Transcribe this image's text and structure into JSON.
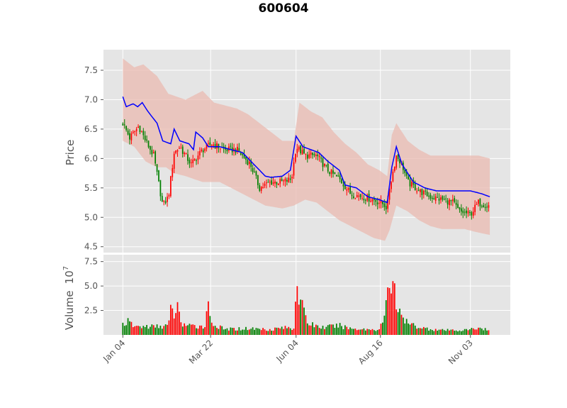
{
  "chart_data": {
    "type": "candlestick",
    "title": "600604",
    "colors": {
      "up": "#ff0000",
      "down": "#008000",
      "ma_line": "#0000ff",
      "band": "#e9b9b0",
      "panel_bg": "#e5e5e5",
      "grid": "#ffffff",
      "tick_text": "#555555"
    },
    "grid": true,
    "price_panel": {
      "ylabel": "Price",
      "ylim": [
        4.4,
        7.85
      ],
      "yticks": [
        4.5,
        5.0,
        5.5,
        6.0,
        6.5,
        7.0,
        7.5
      ],
      "ytick_labels": [
        "4.5",
        "5.0",
        "5.5",
        "6.0",
        "6.5",
        "7.0",
        "7.5"
      ]
    },
    "volume_panel": {
      "ylabel": "Volume",
      "scale_label": "10",
      "scale_exponent": "7",
      "ylim": [
        0,
        8.2
      ],
      "yticks": [
        2.5,
        5.0,
        7.5
      ],
      "ytick_labels": [
        "2.5",
        "5.0",
        "7.5"
      ]
    },
    "x_axis": {
      "start": "Jan 04",
      "ticks": [
        {
          "day": 0,
          "label": "Jan 04"
        },
        {
          "day": 77,
          "label": "Mar 22"
        },
        {
          "day": 152,
          "label": "Jun 04"
        },
        {
          "day": 226,
          "label": "Aug 16"
        },
        {
          "day": 305,
          "label": "Nov 03"
        }
      ],
      "xlim": [
        -17,
        340
      ]
    },
    "close_anchors": [
      [
        0,
        6.6
      ],
      [
        6,
        6.35
      ],
      [
        14,
        6.55
      ],
      [
        20,
        6.3
      ],
      [
        27,
        6.05
      ],
      [
        35,
        5.2
      ],
      [
        40,
        5.35
      ],
      [
        45,
        6.1
      ],
      [
        50,
        6.2
      ],
      [
        60,
        5.9
      ],
      [
        70,
        6.15
      ],
      [
        78,
        6.25
      ],
      [
        90,
        6.15
      ],
      [
        100,
        6.15
      ],
      [
        112,
        5.9
      ],
      [
        120,
        5.5
      ],
      [
        130,
        5.6
      ],
      [
        140,
        5.6
      ],
      [
        148,
        5.65
      ],
      [
        152,
        6.2
      ],
      [
        160,
        6.05
      ],
      [
        170,
        6.05
      ],
      [
        180,
        5.8
      ],
      [
        190,
        5.65
      ],
      [
        200,
        5.4
      ],
      [
        210,
        5.35
      ],
      [
        220,
        5.3
      ],
      [
        229,
        5.22
      ],
      [
        232,
        5.15
      ],
      [
        234,
        5.5
      ],
      [
        240,
        6.05
      ],
      [
        245,
        5.9
      ],
      [
        250,
        5.6
      ],
      [
        260,
        5.45
      ],
      [
        270,
        5.35
      ],
      [
        280,
        5.3
      ],
      [
        290,
        5.25
      ],
      [
        295,
        5.1
      ],
      [
        305,
        5.05
      ],
      [
        312,
        5.25
      ],
      [
        320,
        5.2
      ]
    ],
    "ma_anchors": [
      [
        0,
        7.05
      ],
      [
        3,
        6.88
      ],
      [
        9,
        6.93
      ],
      [
        13,
        6.88
      ],
      [
        17,
        6.95
      ],
      [
        22,
        6.8
      ],
      [
        30,
        6.6
      ],
      [
        35,
        6.3
      ],
      [
        42,
        6.25
      ],
      [
        45,
        6.5
      ],
      [
        50,
        6.3
      ],
      [
        58,
        6.25
      ],
      [
        62,
        6.15
      ],
      [
        64,
        6.45
      ],
      [
        70,
        6.35
      ],
      [
        75,
        6.2
      ],
      [
        85,
        6.2
      ],
      [
        95,
        6.15
      ],
      [
        105,
        6.1
      ],
      [
        115,
        5.9
      ],
      [
        125,
        5.7
      ],
      [
        130,
        5.68
      ],
      [
        140,
        5.7
      ],
      [
        147,
        5.8
      ],
      [
        152,
        6.38
      ],
      [
        158,
        6.2
      ],
      [
        165,
        6.15
      ],
      [
        172,
        6.1
      ],
      [
        180,
        5.95
      ],
      [
        190,
        5.8
      ],
      [
        195,
        5.55
      ],
      [
        205,
        5.5
      ],
      [
        215,
        5.35
      ],
      [
        225,
        5.3
      ],
      [
        232,
        5.25
      ],
      [
        236,
        5.85
      ],
      [
        240,
        6.2
      ],
      [
        245,
        5.9
      ],
      [
        255,
        5.6
      ],
      [
        265,
        5.5
      ],
      [
        275,
        5.45
      ],
      [
        285,
        5.45
      ],
      [
        295,
        5.45
      ],
      [
        305,
        5.45
      ],
      [
        315,
        5.4
      ],
      [
        322,
        5.35
      ]
    ],
    "band_upper_anchors": [
      [
        0,
        7.7
      ],
      [
        10,
        7.55
      ],
      [
        18,
        7.6
      ],
      [
        30,
        7.4
      ],
      [
        40,
        7.1
      ],
      [
        55,
        7.0
      ],
      [
        70,
        7.15
      ],
      [
        80,
        6.95
      ],
      [
        90,
        6.9
      ],
      [
        100,
        6.85
      ],
      [
        110,
        6.75
      ],
      [
        120,
        6.6
      ],
      [
        130,
        6.45
      ],
      [
        140,
        6.3
      ],
      [
        150,
        6.3
      ],
      [
        155,
        6.95
      ],
      [
        165,
        6.8
      ],
      [
        175,
        6.7
      ],
      [
        185,
        6.45
      ],
      [
        195,
        6.25
      ],
      [
        205,
        6.1
      ],
      [
        215,
        5.9
      ],
      [
        225,
        5.8
      ],
      [
        232,
        5.7
      ],
      [
        236,
        6.4
      ],
      [
        240,
        6.6
      ],
      [
        250,
        6.3
      ],
      [
        260,
        6.15
      ],
      [
        270,
        6.05
      ],
      [
        280,
        6.05
      ],
      [
        290,
        6.05
      ],
      [
        300,
        6.05
      ],
      [
        312,
        6.05
      ],
      [
        322,
        6.0
      ]
    ],
    "band_lower_anchors": [
      [
        0,
        6.3
      ],
      [
        10,
        6.2
      ],
      [
        20,
        5.95
      ],
      [
        30,
        5.85
      ],
      [
        38,
        5.85
      ],
      [
        45,
        5.75
      ],
      [
        55,
        5.7
      ],
      [
        70,
        5.6
      ],
      [
        85,
        5.6
      ],
      [
        100,
        5.45
      ],
      [
        115,
        5.3
      ],
      [
        125,
        5.2
      ],
      [
        140,
        5.15
      ],
      [
        150,
        5.2
      ],
      [
        160,
        5.3
      ],
      [
        170,
        5.25
      ],
      [
        180,
        5.1
      ],
      [
        190,
        4.95
      ],
      [
        200,
        4.85
      ],
      [
        210,
        4.75
      ],
      [
        220,
        4.65
      ],
      [
        230,
        4.6
      ],
      [
        234,
        4.78
      ],
      [
        240,
        5.2
      ],
      [
        250,
        5.1
      ],
      [
        260,
        4.95
      ],
      [
        270,
        4.85
      ],
      [
        280,
        4.8
      ],
      [
        290,
        4.8
      ],
      [
        300,
        4.8
      ],
      [
        310,
        4.75
      ],
      [
        322,
        4.7
      ]
    ],
    "volume_anchors": [
      [
        0,
        1.2
      ],
      [
        5,
        1.4
      ],
      [
        10,
        0.9
      ],
      [
        20,
        0.9
      ],
      [
        30,
        0.9
      ],
      [
        40,
        1.0
      ],
      [
        42,
        2.6
      ],
      [
        44,
        2.2
      ],
      [
        48,
        2.8
      ],
      [
        52,
        1.2
      ],
      [
        60,
        0.9
      ],
      [
        72,
        1.0
      ],
      [
        75,
        3.2
      ],
      [
        77,
        2.0
      ],
      [
        80,
        1.0
      ],
      [
        90,
        0.6
      ],
      [
        110,
        0.7
      ],
      [
        130,
        0.6
      ],
      [
        140,
        0.8
      ],
      [
        150,
        0.7
      ],
      [
        152,
        6.2
      ],
      [
        154,
        4.5
      ],
      [
        156,
        4.3
      ],
      [
        158,
        2.6
      ],
      [
        162,
        1.3
      ],
      [
        175,
        0.8
      ],
      [
        190,
        1.0
      ],
      [
        200,
        0.7
      ],
      [
        215,
        0.6
      ],
      [
        225,
        0.6
      ],
      [
        230,
        2.0
      ],
      [
        232,
        4.2
      ],
      [
        234,
        5.8
      ],
      [
        236,
        4.9
      ],
      [
        238,
        7.5
      ],
      [
        240,
        3.0
      ],
      [
        244,
        2.0
      ],
      [
        250,
        1.2
      ],
      [
        265,
        0.7
      ],
      [
        280,
        0.5
      ],
      [
        300,
        0.5
      ],
      [
        315,
        0.8
      ],
      [
        322,
        0.4
      ]
    ]
  }
}
